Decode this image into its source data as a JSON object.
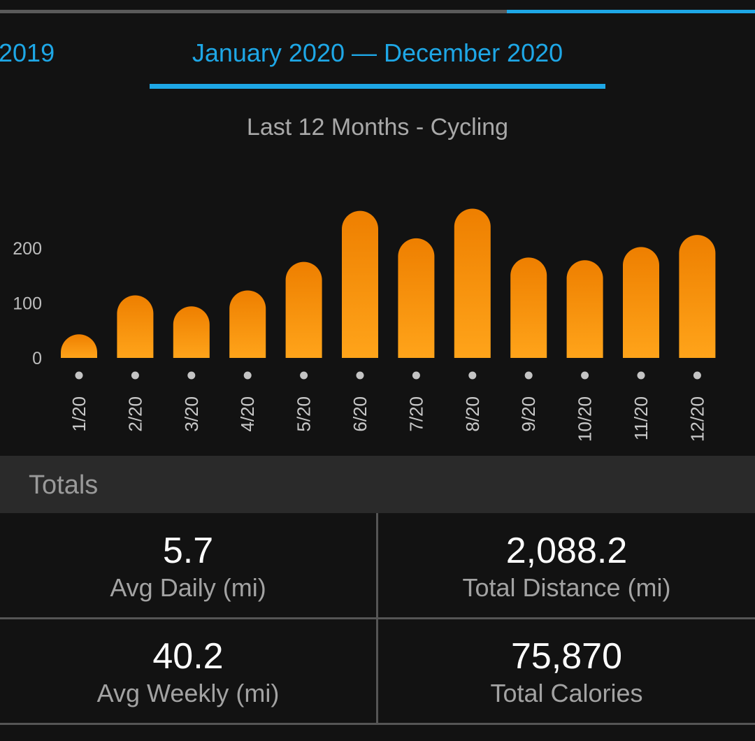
{
  "tabs": {
    "previous": "2019",
    "current": "January 2020 — December 2020"
  },
  "subtitle": "Last 12 Months - Cycling",
  "colors": {
    "accent": "#1ea7e6",
    "bar_top": "#ee7f00",
    "bar_bottom": "#ffa41a"
  },
  "chart_data": {
    "type": "bar",
    "categories": [
      "1/20",
      "2/20",
      "3/20",
      "4/20",
      "5/20",
      "6/20",
      "7/20",
      "8/20",
      "9/20",
      "10/20",
      "11/20",
      "12/20"
    ],
    "values": [
      43,
      114,
      94,
      123,
      175,
      268,
      218,
      272,
      183,
      178,
      202,
      224
    ],
    "yticks": [
      "0",
      "100",
      "200"
    ],
    "ylim": [
      0,
      285
    ]
  },
  "totals": {
    "title": "Totals",
    "avg_daily": {
      "value": "5.7",
      "label": "Avg Daily (mi)"
    },
    "total_distance": {
      "value": "2,088.2",
      "label": "Total Distance (mi)"
    },
    "avg_weekly": {
      "value": "40.2",
      "label": "Avg Weekly (mi)"
    },
    "total_calories": {
      "value": "75,870",
      "label": "Total Calories"
    }
  }
}
